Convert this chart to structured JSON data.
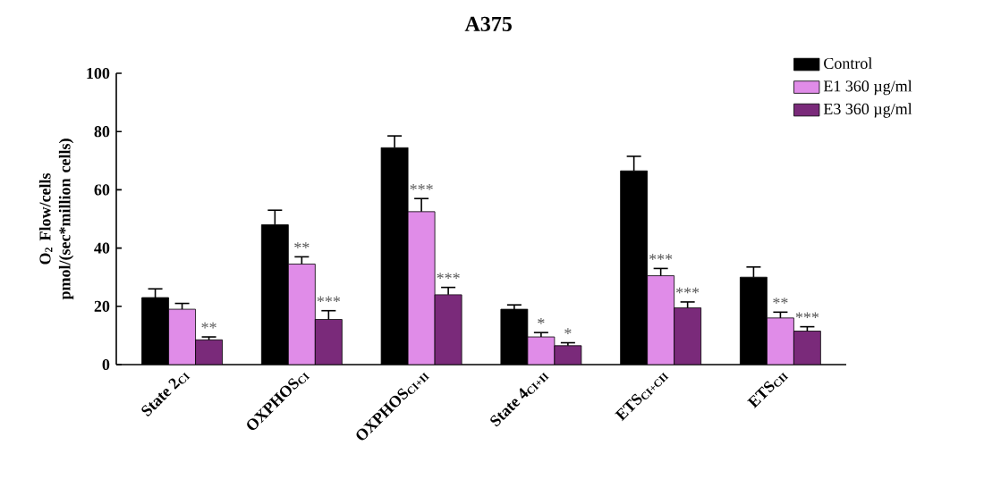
{
  "chart_data": {
    "type": "bar",
    "title": "A375",
    "ylabel": "O$_{2}$ Flow/cells pmol/(sec*million cells)",
    "categories": [
      "State 2$_{CI}$",
      "OXPHOS$_{CI}$",
      "OXPHOS$_{CI+II}$",
      "State 4$_{CI+II}$",
      "ETS$_{CI+CII}$",
      "ETS$_{CII}$"
    ],
    "series": [
      {
        "name": "Control",
        "color": "#000000",
        "values": [
          23,
          48,
          74.5,
          19,
          66.5,
          30
        ],
        "errors": [
          3,
          5,
          4,
          1.5,
          5,
          3.5
        ]
      },
      {
        "name": "E1 360 µg/ml",
        "color": "#e08ce8",
        "values": [
          19,
          34.5,
          52.5,
          9.5,
          30.5,
          16
        ],
        "errors": [
          2,
          2.5,
          4.5,
          1.5,
          2.5,
          2
        ],
        "value_labels": [
          null,
          "**",
          "***",
          "*",
          "***",
          "**"
        ]
      },
      {
        "name": "E3 360 µg/ml",
        "color": "#7a2a7a",
        "values": [
          8.5,
          15.5,
          24,
          6.5,
          19.5,
          11.5
        ],
        "errors": [
          1,
          3,
          2.5,
          1,
          2,
          1.5
        ],
        "value_labels": [
          "**",
          "***",
          "***",
          "*",
          "***",
          "***"
        ]
      }
    ],
    "ylim": [
      0,
      100
    ],
    "yticks": [
      0,
      20,
      40,
      60,
      80,
      100
    ],
    "grid": false,
    "legend": "top right"
  }
}
